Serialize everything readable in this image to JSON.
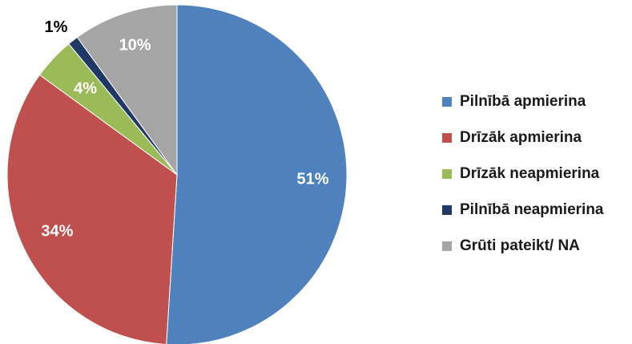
{
  "chart_data": {
    "type": "pie",
    "title": "",
    "categories": [
      "Pilnībā apmierina",
      "Drīzāk apmierina",
      "Drīzāk neapmierina",
      "Pilnībā neapmierina",
      "Grūti pateikt/ NA"
    ],
    "values": [
      51,
      34,
      4,
      1,
      10
    ],
    "labels": [
      "51%",
      "34%",
      "4%",
      "1%",
      "10%"
    ],
    "colors": [
      "#4f81bd",
      "#c0504d",
      "#9bbb59",
      "#1f3864",
      "#a5a5a5"
    ],
    "label_colors": [
      "#ffffff",
      "#ffffff",
      "#ffffff",
      "#000000",
      "#ffffff"
    ],
    "start_angle_deg": 0,
    "direction": "clockwise",
    "legend_position": "right"
  }
}
